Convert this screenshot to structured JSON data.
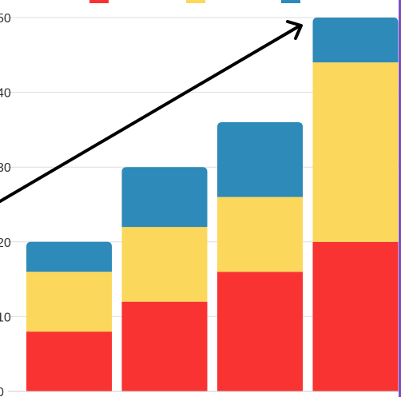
{
  "chart_data": {
    "type": "bar",
    "stacked": true,
    "categories": [
      "",
      "",
      "",
      ""
    ],
    "series": [
      {
        "color": "#f93232",
        "values": [
          8,
          12,
          16,
          20
        ]
      },
      {
        "color": "#fbd85c",
        "values": [
          8,
          10,
          10,
          24
        ]
      },
      {
        "color": "#2e8ab8",
        "values": [
          4,
          8,
          10,
          6
        ]
      }
    ],
    "y_ticks": [
      "0",
      "10",
      "20",
      "30",
      "40",
      "50"
    ],
    "ylim": [
      0,
      50
    ],
    "grid": true,
    "legend_position": "top",
    "annotation": "arrow pointing up-right toward the tallest bar"
  }
}
